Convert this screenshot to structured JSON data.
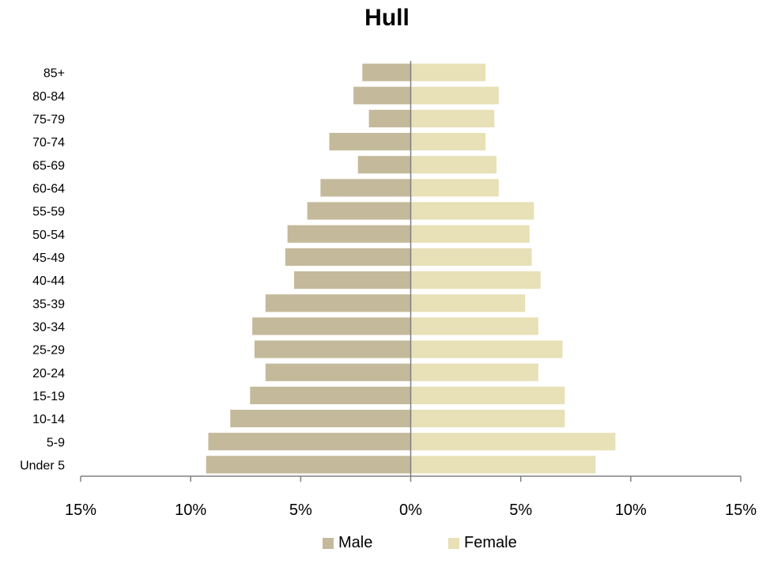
{
  "chart_data": {
    "type": "bar",
    "orientation": "horizontal-population-pyramid",
    "title": "Hull",
    "categories": [
      "85+",
      "80-84",
      "75-79",
      "70-74",
      "65-69",
      "60-64",
      "55-59",
      "50-54",
      "45-49",
      "40-44",
      "35-39",
      "30-34",
      "25-29",
      "20-24",
      "15-19",
      "10-14",
      "5-9",
      "Under 5"
    ],
    "series": [
      {
        "name": "Male",
        "color": "#c4b99a",
        "values": [
          2.2,
          2.6,
          1.9,
          3.7,
          2.4,
          4.1,
          4.7,
          5.6,
          5.7,
          5.3,
          6.6,
          7.2,
          7.1,
          6.6,
          7.3,
          8.2,
          9.2,
          9.3
        ]
      },
      {
        "name": "Female",
        "color": "#e8e0b6",
        "values": [
          3.4,
          4.0,
          3.8,
          3.4,
          3.9,
          4.0,
          5.6,
          5.4,
          5.5,
          5.9,
          5.2,
          5.8,
          6.9,
          5.8,
          7.0,
          7.0,
          9.3,
          8.4
        ]
      }
    ],
    "xlim": [
      -15,
      15
    ],
    "x_ticks": [
      -15,
      -10,
      -5,
      0,
      5,
      10,
      15
    ],
    "x_tick_labels": [
      "15%",
      "10%",
      "5%",
      "0%",
      "5%",
      "10%",
      "15%"
    ],
    "xlabel": "",
    "ylabel": "",
    "grid": false,
    "legend_position": "bottom"
  }
}
